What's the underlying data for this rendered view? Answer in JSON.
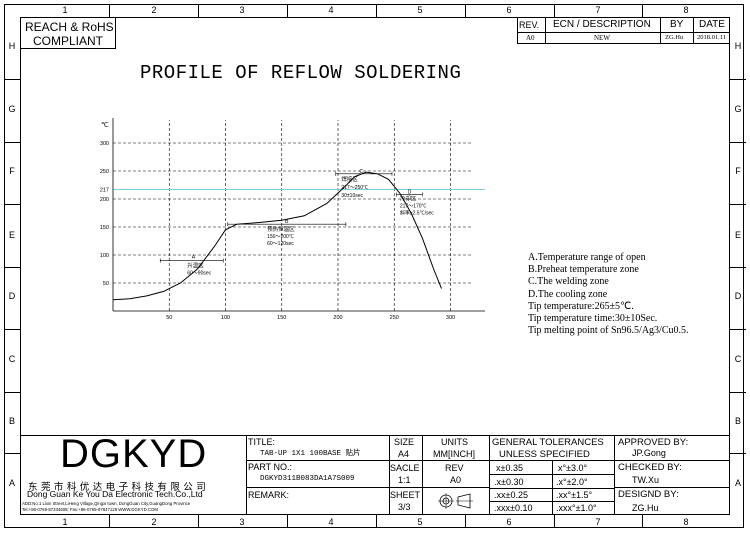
{
  "zones": {
    "cols": [
      "1",
      "2",
      "3",
      "4",
      "5",
      "6",
      "7",
      "8"
    ],
    "rows": [
      "H",
      "G",
      "F",
      "E",
      "D",
      "C",
      "B",
      "A"
    ]
  },
  "compliance": [
    "REACH & RoHS",
    "COMPLIANT"
  ],
  "revision_table": {
    "headers": [
      "REV.",
      "ECN / DESCRIPTION",
      "BY",
      "DATE"
    ],
    "row": [
      "A0",
      "NEW",
      "ZG.Hu",
      "2018.01.11"
    ]
  },
  "drawing_title": "PROFILE OF REFLOW SOLDERING",
  "chart_data": {
    "type": "line",
    "title": "",
    "xlabel": "S",
    "ylabel": "℃",
    "x_ticks": [
      "50",
      "100",
      "150",
      "200",
      "250",
      "300"
    ],
    "y_ticks": [
      "50",
      "100",
      "150",
      "200",
      "217",
      "250",
      "300"
    ],
    "xlim": [
      0,
      320
    ],
    "ylim": [
      0,
      310
    ],
    "grid": true,
    "reference_line": {
      "y": 217,
      "color": "#7fd3dc"
    },
    "series": [
      {
        "x": [
          0,
          15,
          30,
          45,
          60,
          75,
          90,
          100,
          110,
          130,
          150,
          170,
          190,
          205,
          215,
          225,
          235,
          245,
          255,
          265,
          275,
          285,
          292
        ],
        "values": [
          20,
          22,
          27,
          35,
          50,
          75,
          115,
          145,
          155,
          158,
          162,
          170,
          192,
          220,
          240,
          248,
          245,
          235,
          210,
          175,
          130,
          75,
          40
        ]
      }
    ],
    "zones": [
      {
        "letter": "A",
        "name": "升温区",
        "range": "60～90sec"
      },
      {
        "letter": "B",
        "name": "预热恒温区",
        "range_temp": "150～200℃",
        "range": "60～120sec"
      },
      {
        "letter": "C",
        "name": "焊接区",
        "range_temp": "217～250℃",
        "range": "30±10sec"
      },
      {
        "letter": "D",
        "name": "冷却区",
        "range_temp": "217～170℃",
        "range": "斜率≥2.5℃/sec"
      }
    ]
  },
  "notes": [
    "A.Temperature range of open",
    "B.Preheat temperature zone",
    "C.The welding zone",
    "D.The cooling zone",
    "Tip temperature:265±5℃.",
    "Tip temperature time:30±10Sec.",
    "Tip melting point of Sn96.5/Ag3/Cu0.5."
  ],
  "title_block": {
    "logo": "DGKYD",
    "company_cn": "东 莞 市 科 优 达 电 子 科 技 有 限 公 司",
    "company_en": "Dong Guan Ke You Da Electronic Tech.Co.,Ltd",
    "address": "ADD:No.1 Lixin Street,LiHeng Village,Qingxi town, DongGuan City,GuangDong Province",
    "contact": "Tel:+86-0769-87334608; Fax:+86-0769-87847129  WWW.DGKYD.COM",
    "title_label": "TITLE:",
    "title_value": "TAB-UP 1X1 100BASE 贴片",
    "part_label": "PART NO.:",
    "part_value": "DGKYD311B083DA1A7S009",
    "remark_label": "REMARK:",
    "size_label": "SIZE",
    "size_value": "A4",
    "units_label": "UNITS",
    "units_value": "MM[INCH]",
    "scale_label": "SACLE",
    "scale_value": "1:1",
    "rev_label": "REV",
    "rev_value": "A0",
    "sheet_label": "SHEET",
    "sheet_value": "3/3",
    "tol_title_1": "GENERAL TOLERANCES",
    "tol_title_2": "UNLESS SPECIFIED",
    "tolerances": [
      [
        "x±0.35",
        "x°±3.0°"
      ],
      [
        ".x±0.30",
        ".x°±2.0°"
      ],
      [
        ".xx±0.25",
        ".xx°±1.5°"
      ],
      [
        ".xxx±0.10",
        ".xxx°±1.0°"
      ]
    ],
    "approved_label": "APPROVED BY:",
    "approved_value": "JP.Gong",
    "checked_label": "CHECKED BY:",
    "checked_value": "TW.Xu",
    "designed_label": "DESIGND BY:",
    "designed_value": "ZG.Hu"
  }
}
